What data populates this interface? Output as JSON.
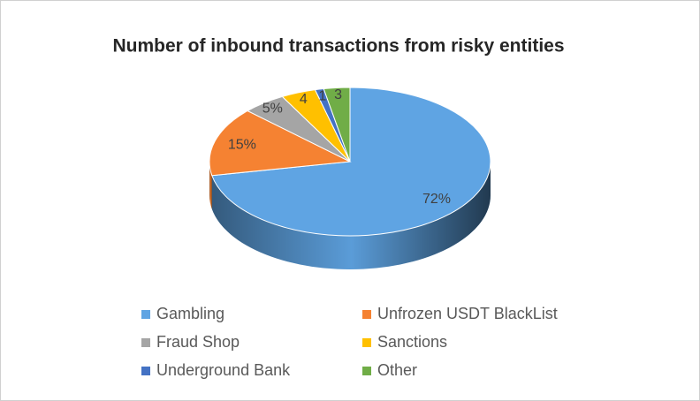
{
  "chart_data": {
    "type": "pie3d",
    "title": "Number of inbound transactions from risky entities",
    "categories": [
      "Gambling",
      "Unfrozen USDT BlackList",
      "Fraud Shop",
      "Sanctions",
      "Underground Bank",
      "Other"
    ],
    "values": [
      72,
      15,
      5,
      4,
      1,
      3
    ],
    "value_labels": [
      "72%",
      "15%",
      "5%",
      "4",
      "1",
      "3"
    ],
    "colors": [
      "#5fa4e3",
      "#f58232",
      "#a5a5a5",
      "#ffc000",
      "#4472c4",
      "#70ad47"
    ],
    "legend": "bottom"
  }
}
